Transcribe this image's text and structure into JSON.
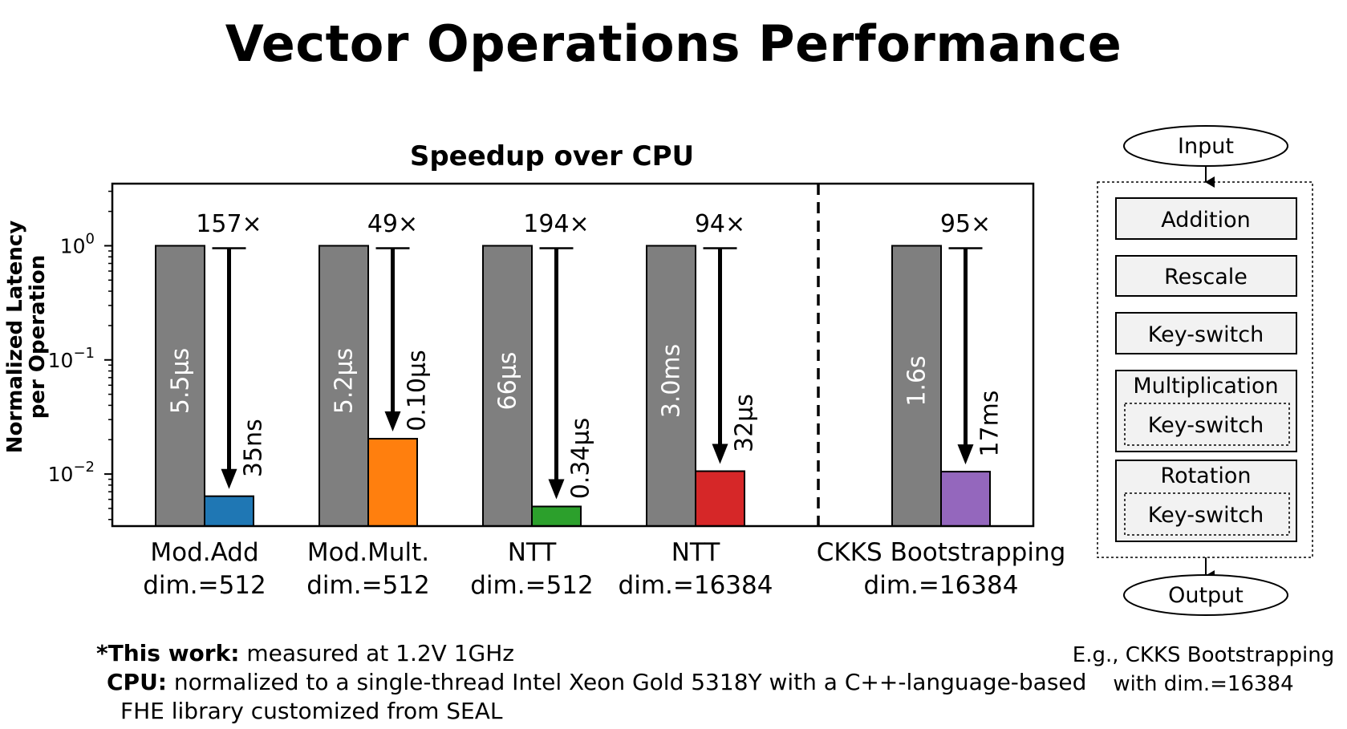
{
  "slide_title": "Vector Operations Performance",
  "chart_data": {
    "type": "bar",
    "title": "Speedup over CPU",
    "ylabel_line1": "Normalized Latency",
    "ylabel_line2": "per Operation",
    "yscale": "log",
    "ylim": [
      0.0035,
      3.5
    ],
    "yticks": [
      {
        "value": 1,
        "base": "10",
        "exp": "0"
      },
      {
        "value": 0.1,
        "base": "10",
        "exp": "−1"
      },
      {
        "value": 0.01,
        "base": "10",
        "exp": "−2"
      }
    ],
    "series": [
      {
        "name": "CPU",
        "color": "#7f7f7f"
      },
      {
        "name": "This work"
      }
    ],
    "groups": [
      {
        "label1": "Mod.Add",
        "label2": "dim.=512",
        "cpu_value": 1.0,
        "cpu_label": "5.5μs",
        "chip_value": 0.0064,
        "chip_label": "35ns",
        "chip_color": "#1f77b4",
        "speedup": "157×"
      },
      {
        "label1": "Mod.Mult.",
        "label2": "dim.=512",
        "cpu_value": 1.0,
        "cpu_label": "5.2μs",
        "chip_value": 0.0204,
        "chip_label": "0.10μs",
        "chip_color": "#ff7f0e",
        "speedup": "49×"
      },
      {
        "label1": "NTT",
        "label2": "dim.=512",
        "cpu_value": 1.0,
        "cpu_label": "66μs",
        "chip_value": 0.0052,
        "chip_label": "0.34μs",
        "chip_color": "#2ca02c",
        "speedup": "194×"
      },
      {
        "label1": "NTT",
        "label2": "dim.=16384",
        "cpu_value": 1.0,
        "cpu_label": "3.0ms",
        "chip_value": 0.0106,
        "chip_label": "32μs",
        "chip_color": "#d62728",
        "speedup": "94×"
      },
      {
        "label1": "CKKS Bootstrapping",
        "label2": "dim.=16384",
        "cpu_value": 1.0,
        "cpu_label": "1.6s",
        "chip_value": 0.0105,
        "chip_label": "17ms",
        "chip_color": "#9467bd",
        "speedup": "95×"
      }
    ],
    "separator": "dashed line between group 4 and group 5"
  },
  "flow": {
    "input": "Input",
    "output": "Output",
    "steps": [
      "Addition",
      "Rescale",
      "Key-switch"
    ],
    "mult_title": "Multiplication",
    "mult_inner": "Key-switch",
    "rot_title": "Rotation",
    "rot_inner": "Key-switch",
    "caption_line1": "E.g., CKKS Bootstrapping",
    "caption_line2": "with dim.=16384"
  },
  "notes": {
    "line1_bold": "*This work:",
    "line1_text": " measured at 1.2V 1GHz",
    "line2_bold": "CPU:",
    "line2_text": " normalized to a single-thread Intel Xeon Gold 5318Y with a C++-language-based",
    "line3_text": "FHE library customized from SEAL"
  },
  "colors": {
    "cpu_bar": "#7f7f7f",
    "box_fill": "#f2f2f2"
  }
}
